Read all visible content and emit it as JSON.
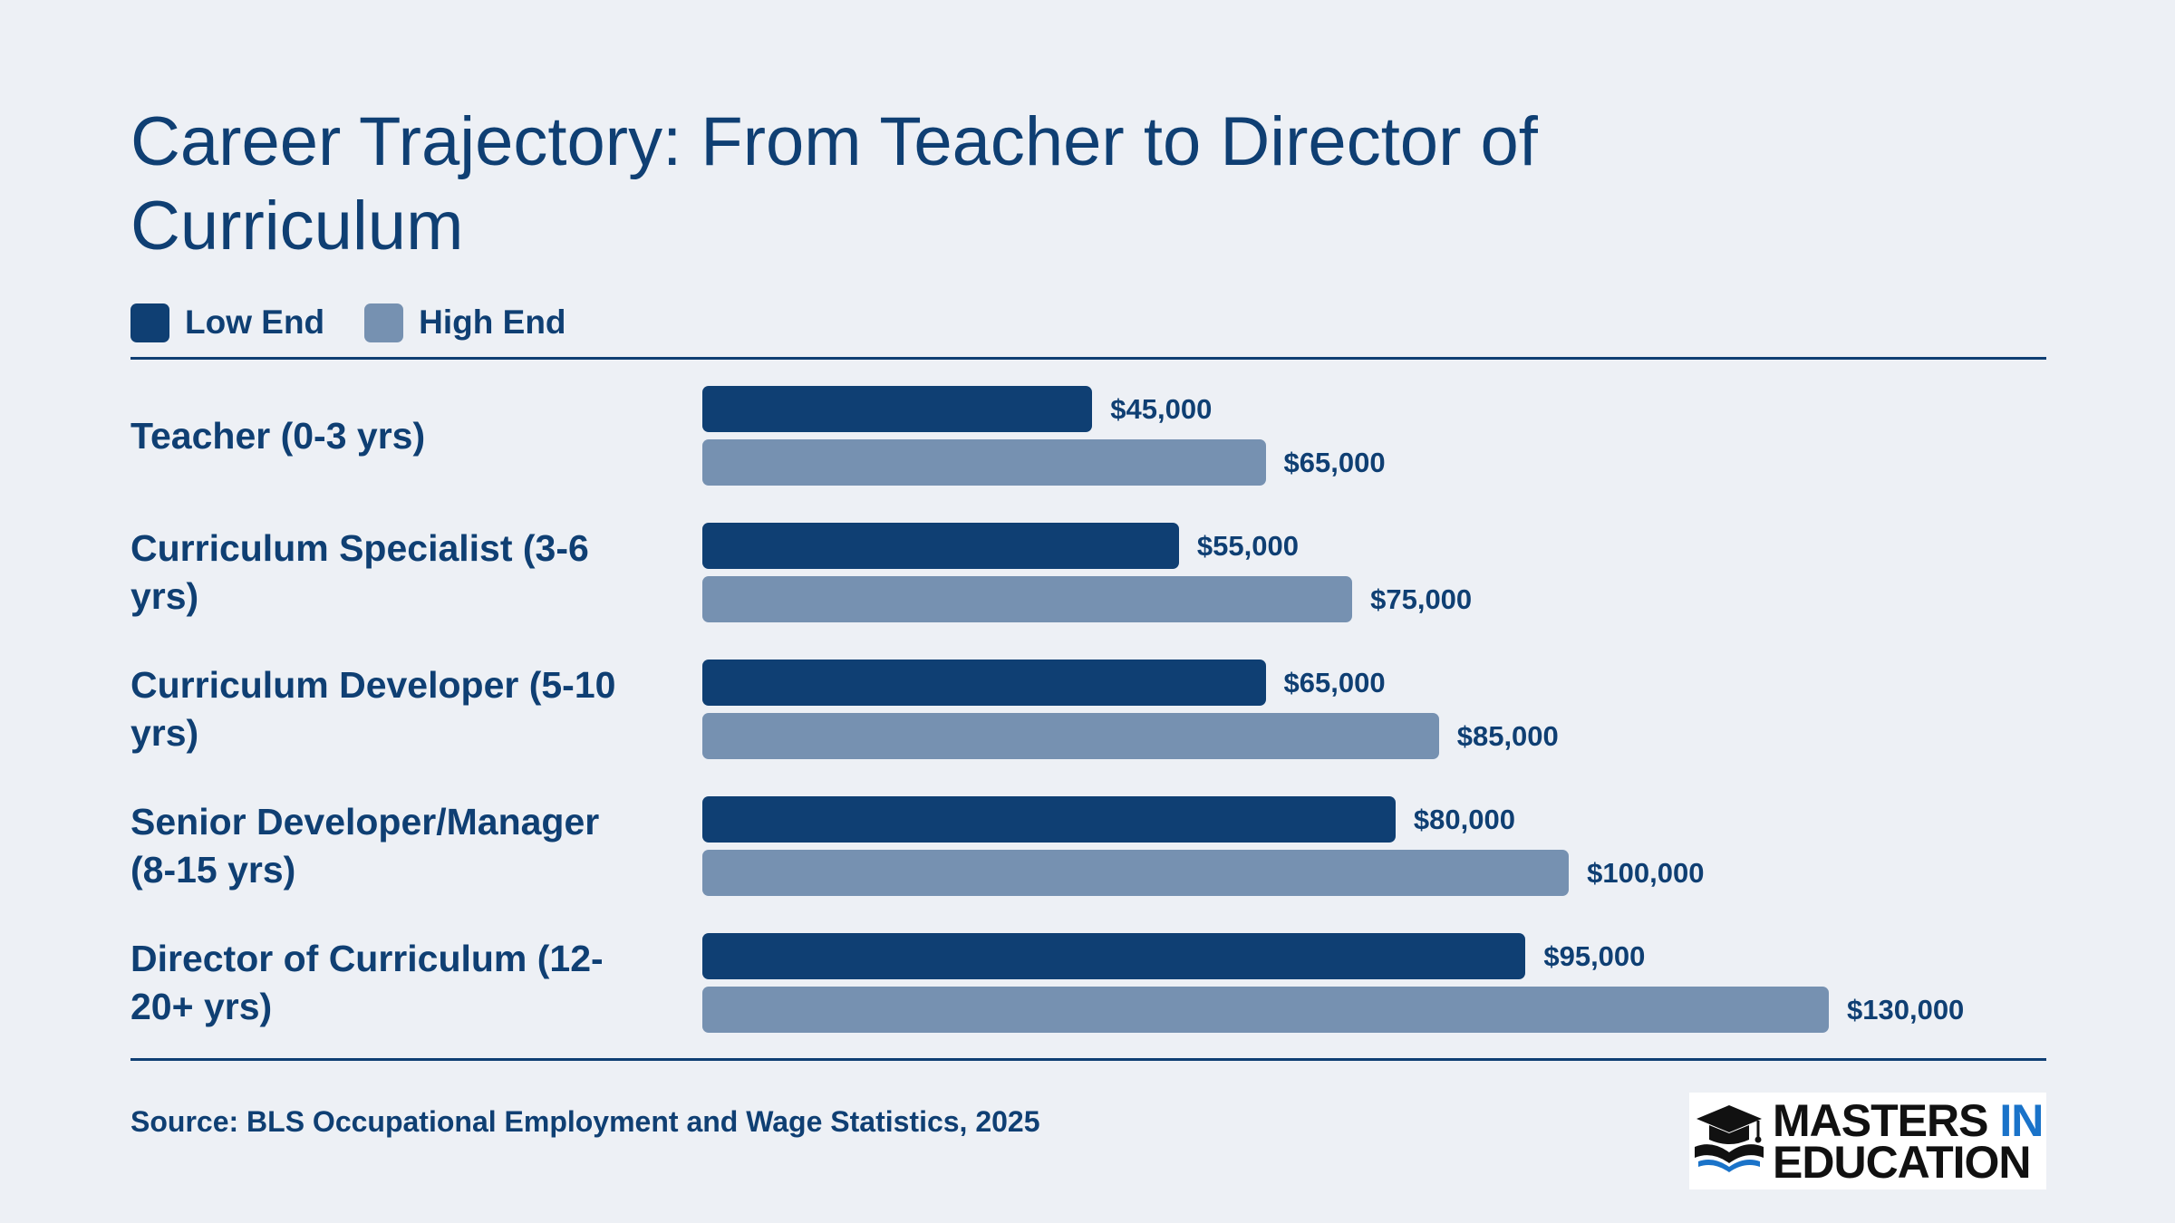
{
  "title": "Career Trajectory: From Teacher to Director of Curriculum",
  "source": "Source: BLS Occupational Employment and Wage Statistics, 2025",
  "logo": {
    "line1_main": "MASTERS",
    "line1_accent": "IN",
    "line2": "EDUCATION",
    "icon": "graduation-cap-book-icon"
  },
  "colors": {
    "low": "#0f3f73",
    "high": "#7691b1",
    "accent": "#1a73c9",
    "background": "#edf0f5"
  },
  "chart_data": {
    "type": "bar",
    "orientation": "horizontal",
    "title": "Career Trajectory: From Teacher to Director of Curriculum",
    "categories": [
      "Teacher (0-3 yrs)",
      "Curriculum Specialist (3-6 yrs)",
      "Curriculum Developer (5-10 yrs)",
      "Senior Developer/Manager (8-15 yrs)",
      "Director of Curriculum (12-20+ yrs)"
    ],
    "series": [
      {
        "name": "Low End",
        "values": [
          45000,
          55000,
          65000,
          80000,
          95000
        ],
        "labels": [
          "$45,000",
          "$55,000",
          "$65,000",
          "$80,000",
          "$95,000"
        ]
      },
      {
        "name": "High End",
        "values": [
          65000,
          75000,
          85000,
          100000,
          130000
        ],
        "labels": [
          "$65,000",
          "$75,000",
          "$85,000",
          "$100,000",
          "$130,000"
        ]
      }
    ],
    "xlim": [
      0,
      130000
    ],
    "legend": "top-left",
    "grid": false
  }
}
